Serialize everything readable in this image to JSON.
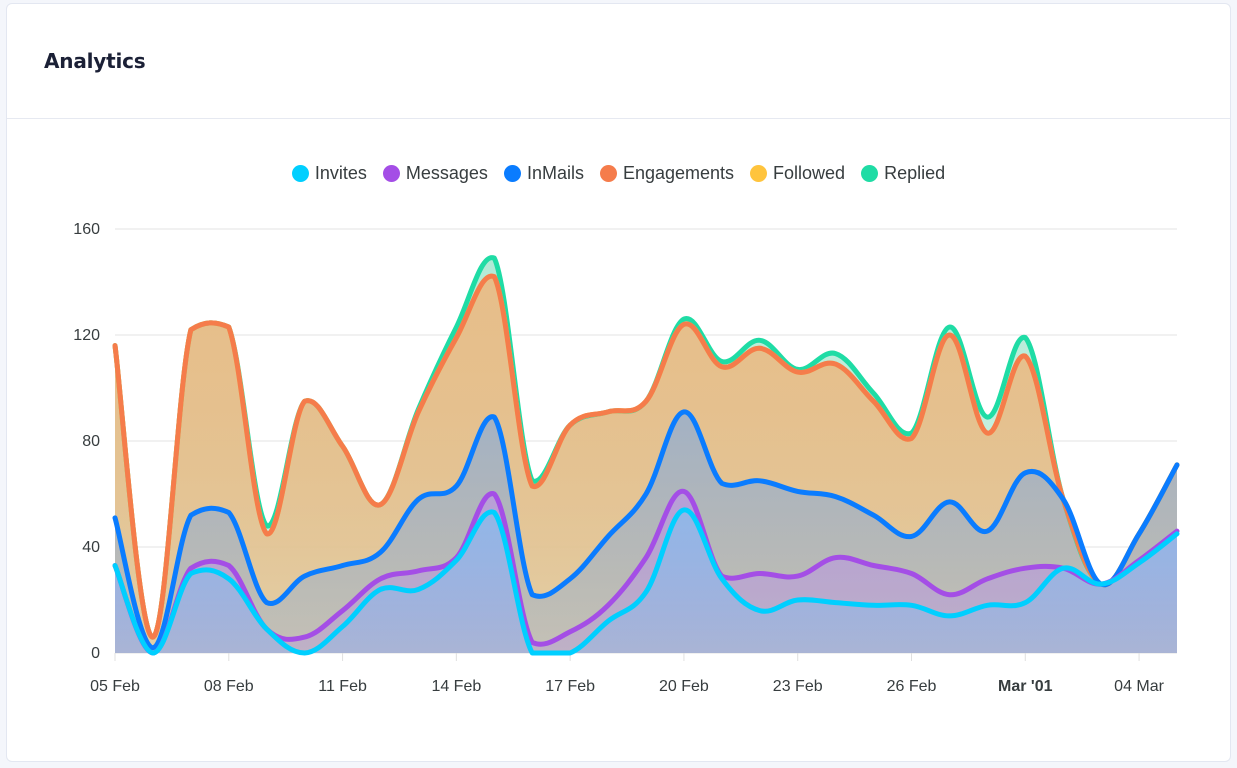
{
  "card": {
    "title": "Analytics"
  },
  "colors": {
    "Invites": "#00cfff",
    "Messages": "#a44ee6",
    "InMails": "#0a7cff",
    "Engagements": "#f57c4b",
    "Followed": "#ffc43d",
    "Replied": "#1fdca5"
  },
  "chart_data": {
    "type": "area",
    "stacked": true,
    "title": "",
    "xlabel": "",
    "ylabel": "",
    "ylim": [
      0,
      160
    ],
    "yticks": [
      "0",
      "40",
      "80",
      "120",
      "160"
    ],
    "ytick_values": [
      0,
      40,
      80,
      120,
      160
    ],
    "grid": true,
    "legend_position": "top-center",
    "x": [
      "05 Feb",
      "06 Feb",
      "07 Feb",
      "08 Feb",
      "09 Feb",
      "10 Feb",
      "11 Feb",
      "12 Feb",
      "13 Feb",
      "14 Feb",
      "15 Feb",
      "16 Feb",
      "17 Feb",
      "18 Feb",
      "19 Feb",
      "20 Feb",
      "21 Feb",
      "22 Feb",
      "23 Feb",
      "24 Feb",
      "25 Feb",
      "26 Feb",
      "27 Feb",
      "28 Feb",
      "01 Mar",
      "02 Mar",
      "03 Mar",
      "04 Mar",
      "05 Mar"
    ],
    "xtick_labels": [
      {
        "index": 0,
        "label": "05 Feb",
        "bold": false
      },
      {
        "index": 3,
        "label": "08 Feb",
        "bold": false
      },
      {
        "index": 6,
        "label": "11 Feb",
        "bold": false
      },
      {
        "index": 9,
        "label": "14 Feb",
        "bold": false
      },
      {
        "index": 12,
        "label": "17 Feb",
        "bold": false
      },
      {
        "index": 15,
        "label": "20 Feb",
        "bold": false
      },
      {
        "index": 18,
        "label": "23 Feb",
        "bold": false
      },
      {
        "index": 21,
        "label": "26 Feb",
        "bold": false
      },
      {
        "index": 24,
        "label": "Mar '01",
        "bold": true
      },
      {
        "index": 27,
        "label": "04 Mar",
        "bold": false
      }
    ],
    "series": [
      {
        "name": "Invites",
        "values": [
          33,
          0,
          30,
          28,
          9,
          0,
          10,
          24,
          24,
          35,
          53,
          0,
          0,
          12,
          23,
          54,
          28,
          16,
          20,
          19,
          18,
          18,
          14,
          18,
          19,
          32,
          26,
          34,
          45
        ]
      },
      {
        "name": "Messages",
        "values": [
          0,
          0,
          2,
          5,
          0,
          6,
          6,
          4,
          7,
          1,
          7,
          4,
          8,
          6,
          13,
          7,
          1,
          14,
          9,
          17,
          15,
          12,
          8,
          10,
          13,
          0,
          0,
          1,
          1
        ]
      },
      {
        "name": "InMails",
        "values": [
          18,
          2,
          20,
          20,
          10,
          23,
          17,
          10,
          27,
          27,
          29,
          18,
          20,
          26,
          24,
          30,
          35,
          35,
          32,
          23,
          19,
          14,
          35,
          18,
          36,
          26,
          0,
          10,
          25
        ]
      },
      {
        "name": "Engagements",
        "values": [
          65,
          4,
          70,
          70,
          26,
          66,
          45,
          18,
          33,
          56,
          53,
          41,
          58,
          47,
          35,
          33,
          44,
          50,
          45,
          50,
          43,
          37,
          63,
          37,
          44,
          0,
          0,
          0,
          0
        ]
      },
      {
        "name": "Followed",
        "values": [
          0,
          0,
          0,
          0,
          0,
          0,
          0,
          0,
          0,
          0,
          0,
          0,
          0,
          0,
          0,
          0,
          0,
          0,
          0,
          0,
          0,
          0,
          0,
          0,
          0,
          0,
          0,
          0,
          0
        ]
      },
      {
        "name": "Replied",
        "values": [
          0,
          0,
          0,
          0,
          3,
          0,
          0,
          0,
          1,
          4,
          7,
          2,
          0,
          0,
          0,
          2,
          2,
          3,
          1,
          4,
          3,
          2,
          3,
          6,
          7,
          0,
          0,
          0,
          0
        ]
      }
    ]
  }
}
